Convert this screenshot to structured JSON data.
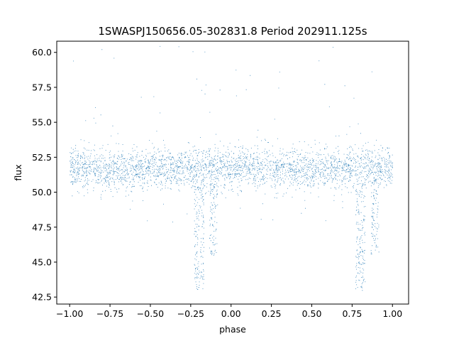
{
  "chart_data": {
    "type": "scatter",
    "title": "1SWASPJ150656.05-302831.8 Period 202911.125s",
    "xlabel": "phase",
    "ylabel": "flux",
    "xlim": [
      -1.08,
      1.1
    ],
    "ylim": [
      42.0,
      60.8
    ],
    "xticks": [
      -1.0,
      -0.75,
      -0.5,
      -0.25,
      0.0,
      0.25,
      0.5,
      0.75,
      1.0
    ],
    "xtick_labels": [
      "−1.00",
      "−0.75",
      "−0.50",
      "−0.25",
      "0.00",
      "0.25",
      "0.50",
      "0.75",
      "1.00"
    ],
    "yticks": [
      42.5,
      45.0,
      47.5,
      50.0,
      52.5,
      55.0,
      57.5,
      60.0
    ],
    "ytick_labels": [
      "42.5",
      "45.0",
      "47.5",
      "50.0",
      "52.5",
      "55.0",
      "57.5",
      "60.0"
    ],
    "grid": false,
    "marker_color": "#1f77b4",
    "series": [
      {
        "phase_range": [
          -1.0,
          1.0
        ],
        "baseline_flux": 51.7,
        "scatter_sigma": 0.75,
        "flux_clip": [
          43.0,
          60.5
        ],
        "dips": [
          {
            "center_phase": -0.2,
            "min_flux": 43.0
          },
          {
            "center_phase": 0.8,
            "min_flux": 43.0
          }
        ],
        "secondary_dips": [
          {
            "center_phase": -0.11,
            "min_flux": 45.5
          },
          {
            "center_phase": 0.89,
            "min_flux": 45.5
          }
        ]
      }
    ]
  }
}
